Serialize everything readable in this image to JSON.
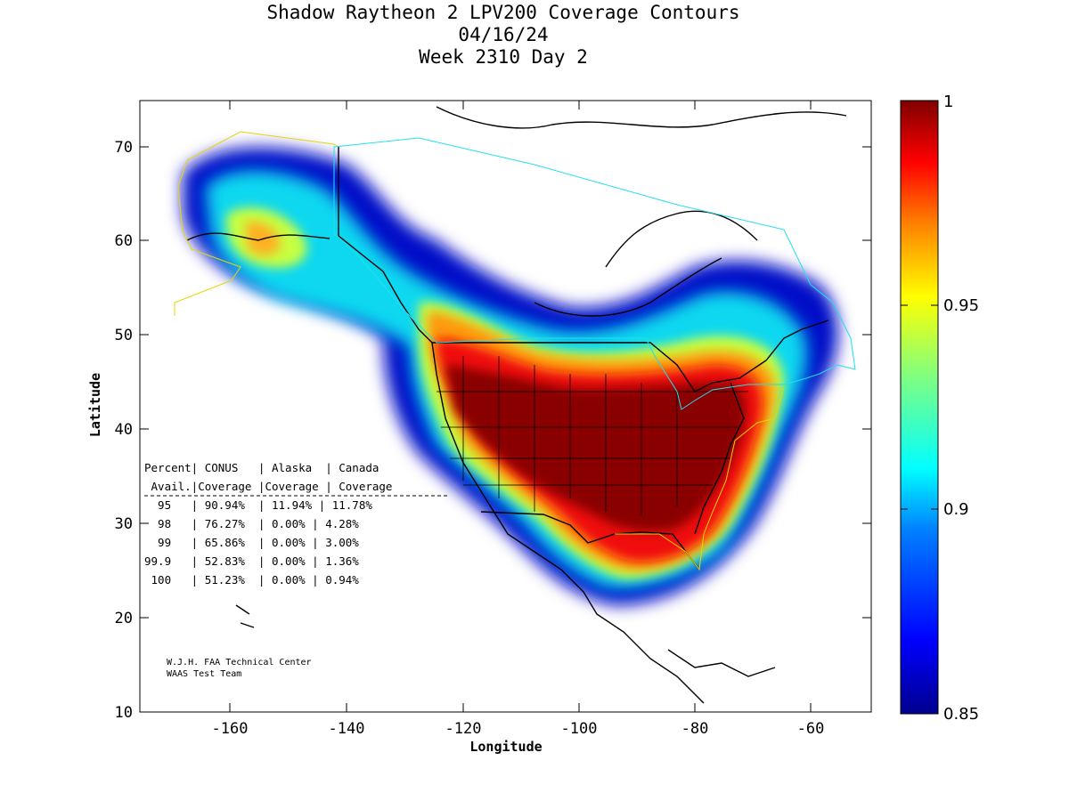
{
  "title": {
    "line1": "Shadow Raytheon 2 LPV200 Coverage Contours",
    "line2": "04/16/24",
    "line3": "Week 2310 Day 2"
  },
  "axes": {
    "xlabel": "Longitude",
    "ylabel": "Latitude",
    "xticks": [
      "-160",
      "-140",
      "-120",
      "-100",
      "-80",
      "-60"
    ],
    "yticks": [
      "70",
      "60",
      "50",
      "40",
      "30",
      "20",
      "10"
    ]
  },
  "colorbar": {
    "labels": [
      "1",
      "0.95",
      "0.9",
      "0.85"
    ],
    "colors": [
      "#00008f",
      "#0000ff",
      "#0080ff",
      "#00ffff",
      "#80ff80",
      "#ffff00",
      "#ff8000",
      "#ff0000",
      "#800000"
    ]
  },
  "table": {
    "header1": "Percent| CONUS   | Alaska  | Canada",
    "header2": " Avail.|Coverage |Coverage | Coverage",
    "rows": [
      "  95   | 90.94%  | 11.94% | 11.78%",
      "  98   | 76.27%  | 0.00% | 4.28%",
      "  99   | 65.86%  | 0.00% | 3.00%",
      "99.9   | 52.83%  | 0.00% | 1.36%",
      " 100   | 51.23%  | 0.00% | 0.94%"
    ]
  },
  "credit": {
    "line1": "W.J.H. FAA Technical Center",
    "line2": "WAAS Test Team"
  },
  "chart_data": {
    "type": "heatmap",
    "title": "Shadow Raytheon 2 LPV200 Coverage Contours",
    "subtitle": [
      "04/16/24",
      "Week 2310 Day 2"
    ],
    "xlabel": "Longitude",
    "ylabel": "Latitude",
    "xlim": [
      -175,
      -50
    ],
    "ylim": [
      10,
      75
    ],
    "colorbar_range": [
      0.85,
      1
    ],
    "coverage_table": [
      {
        "percent_avail": "95",
        "conus": "90.94%",
        "alaska": "11.94%",
        "canada": "11.78%"
      },
      {
        "percent_avail": "98",
        "conus": "76.27%",
        "alaska": "0.00%",
        "canada": "4.28%"
      },
      {
        "percent_avail": "99",
        "conus": "65.86%",
        "alaska": "0.00%",
        "canada": "3.00%"
      },
      {
        "percent_avail": "99.9",
        "conus": "52.83%",
        "alaska": "0.00%",
        "canada": "1.36%"
      },
      {
        "percent_avail": "100",
        "conus": "51.23%",
        "alaska": "0.00%",
        "canada": "0.94%"
      }
    ]
  }
}
